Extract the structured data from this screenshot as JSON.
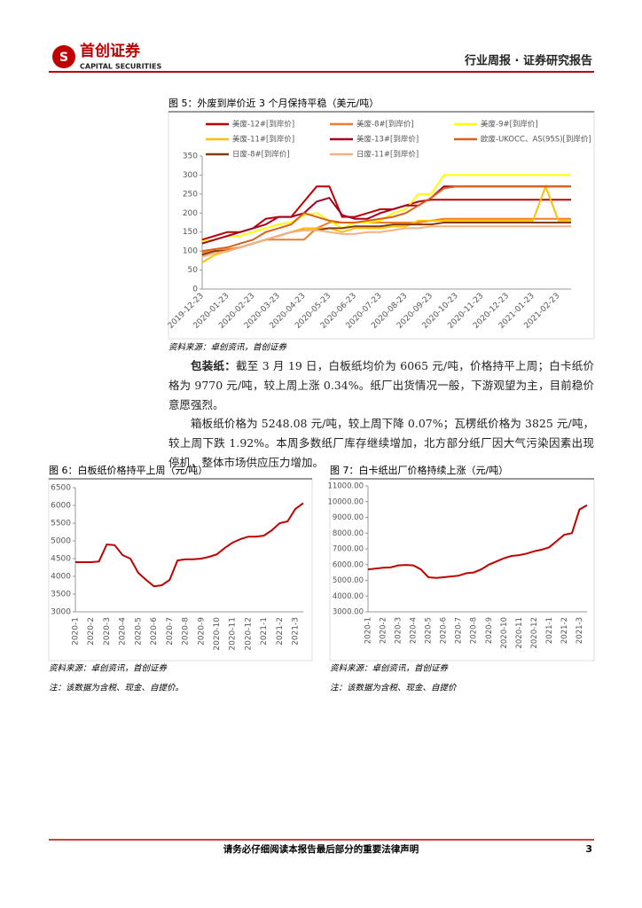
{
  "header": {
    "logo_cn": "首创证券",
    "logo_en": "CAPITAL SECURITIES",
    "report_type": "行业周报 · 证券研究报告"
  },
  "chart_data": [
    {
      "type": "line",
      "title": "图 5：外废到岸价近 3 个月保持平稳（美元/吨）",
      "legend": "top",
      "categories": [
        "2019-12-23",
        null,
        "2020-01-23",
        null,
        "2020-02-23",
        null,
        "2020-03-23",
        null,
        "2020-04-23",
        null,
        "2020-05-23",
        null,
        "2020-06-23",
        null,
        "2020-07-23",
        null,
        "2020-08-23",
        null,
        "2020-09-23",
        null,
        "2020-10-23",
        null,
        "2020-11-23",
        null,
        "2020-12-23",
        null,
        "2021-01-23",
        null,
        "2021-02-23",
        null
      ],
      "ylim": [
        0,
        350
      ],
      "yticks": [
        0,
        50,
        100,
        150,
        200,
        250,
        300,
        350
      ],
      "series": [
        {
          "name": "美废-12#[到岸价]",
          "color": "#c00000",
          "values": [
            130,
            140,
            150,
            150,
            160,
            185,
            190,
            190,
            230,
            270,
            270,
            190,
            190,
            200,
            210,
            210,
            220,
            230,
            235,
            235,
            235,
            235,
            235,
            235,
            235,
            235,
            235,
            235,
            235,
            235
          ]
        },
        {
          "name": "美废-8#[到岸价]",
          "color": "#ed7d31",
          "values": [
            95,
            100,
            105,
            110,
            120,
            130,
            130,
            130,
            130,
            160,
            175,
            175,
            175,
            175,
            175,
            175,
            175,
            175,
            180,
            185,
            185,
            185,
            185,
            185,
            185,
            185,
            185,
            185,
            185,
            185
          ]
        },
        {
          "name": "美废-9#[到岸价]",
          "color": "#ffff00",
          "values": [
            125,
            130,
            140,
            140,
            150,
            160,
            170,
            175,
            195,
            200,
            180,
            160,
            175,
            175,
            180,
            200,
            210,
            250,
            250,
            300,
            300,
            300,
            300,
            300,
            300,
            300,
            300,
            300,
            300,
            300
          ]
        },
        {
          "name": "美废-11#[到岸价]",
          "color": "#ffc000",
          "values": [
            70,
            90,
            100,
            110,
            120,
            130,
            140,
            150,
            160,
            160,
            160,
            150,
            160,
            160,
            160,
            165,
            165,
            180,
            180,
            180,
            180,
            180,
            180,
            180,
            180,
            180,
            180,
            270,
            180,
            180
          ]
        },
        {
          "name": "美废-13#[到岸价]",
          "color": "#a50021",
          "values": [
            120,
            130,
            140,
            150,
            160,
            170,
            190,
            190,
            200,
            230,
            240,
            195,
            185,
            185,
            200,
            210,
            220,
            220,
            240,
            270,
            270,
            270,
            270,
            270,
            270,
            270,
            270,
            270,
            270,
            270
          ]
        },
        {
          "name": "欧废-UKOCC、AS(95S)[到岸价]",
          "color": "#d9601a",
          "values": [
            100,
            105,
            110,
            120,
            130,
            150,
            160,
            170,
            200,
            190,
            180,
            175,
            175,
            180,
            185,
            190,
            200,
            220,
            240,
            265,
            270,
            270,
            270,
            270,
            270,
            270,
            270,
            270,
            270,
            270
          ]
        },
        {
          "name": "日废-8#[到岸价]",
          "color": "#843c0c",
          "values": [
            90,
            100,
            100,
            110,
            120,
            130,
            140,
            150,
            155,
            155,
            160,
            160,
            165,
            165,
            165,
            170,
            170,
            170,
            170,
            175,
            175,
            175,
            175,
            175,
            175,
            175,
            175,
            175,
            175,
            175
          ]
        },
        {
          "name": "日废-11#[到岸价]",
          "color": "#f4b183",
          "values": [
            85,
            95,
            100,
            110,
            120,
            130,
            140,
            150,
            155,
            155,
            150,
            145,
            145,
            150,
            150,
            155,
            160,
            160,
            165,
            165,
            165,
            165,
            165,
            165,
            165,
            165,
            165,
            165,
            165,
            165
          ]
        }
      ]
    },
    {
      "type": "line",
      "title": "图 6：白板纸价格持平上周（元/吨）",
      "color": "#c00000",
      "categories": [
        "2020-1",
        null,
        "2020-2",
        null,
        "2020-3",
        null,
        "2020-4",
        null,
        "2020-5",
        null,
        "2020-6",
        null,
        "2020-7",
        null,
        "2020-8",
        null,
        "2020-9",
        null,
        "2020-10",
        null,
        "2020-11",
        null,
        "2020-12",
        null,
        "2021-1",
        null,
        "2021-2",
        null,
        "2021-3",
        null
      ],
      "ylim": [
        3000,
        6500
      ],
      "yticks": [
        3000,
        3500,
        4000,
        4500,
        5000,
        5500,
        6000,
        6500
      ],
      "values": [
        4400,
        4400,
        4400,
        4420,
        4900,
        4880,
        4600,
        4500,
        4100,
        3900,
        3720,
        3750,
        3900,
        4450,
        4480,
        4480,
        4500,
        4550,
        4620,
        4800,
        4950,
        5050,
        5120,
        5120,
        5150,
        5300,
        5500,
        5550,
        5900,
        6065
      ]
    },
    {
      "type": "line",
      "title": "图 7：白卡纸出厂价格持续上涨（元/吨）",
      "color": "#c00000",
      "categories": [
        "2020-1",
        null,
        "2020-2",
        null,
        "2020-3",
        null,
        "2020-4",
        null,
        "2020-5",
        null,
        "2020-6",
        null,
        "2020-7",
        null,
        "2020-8",
        null,
        "2020-9",
        null,
        "2020-10",
        null,
        "2020-11",
        null,
        "2020-12",
        null,
        "2021-1",
        null,
        "2021-2",
        null,
        "2021-3",
        null
      ],
      "ylim": [
        3000,
        11000
      ],
      "yticks": [
        {
          "value": 3000,
          "label": "3000.00"
        },
        {
          "value": 4000,
          "label": "4000.00"
        },
        {
          "value": 5000,
          "label": "5000.00"
        },
        {
          "value": 6000,
          "label": "6000.00"
        },
        {
          "value": 7000,
          "label": "7000.00"
        },
        {
          "value": 8000,
          "label": "8000.00"
        },
        {
          "value": 9000,
          "label": "9000.00"
        },
        {
          "value": 10000,
          "label": "10000.00"
        },
        {
          "value": 11000,
          "label": "11000.00"
        }
      ],
      "values": [
        5700,
        5750,
        5800,
        5820,
        5950,
        5980,
        5950,
        5700,
        5200,
        5150,
        5200,
        5250,
        5300,
        5450,
        5500,
        5700,
        6000,
        6200,
        6400,
        6550,
        6600,
        6700,
        6850,
        6950,
        7100,
        7500,
        7900,
        8000,
        9500,
        9770
      ]
    }
  ],
  "figures": [
    {
      "source": "资料来源：卓创资讯，首创证券"
    },
    {
      "source": "资料来源：卓创资讯，首创证券",
      "note": "注：该数据为含税、现金、自提价。"
    },
    {
      "source": "资料来源：卓创资讯，首创证券",
      "note": "注：该数据为含税、现金、自提价"
    }
  ],
  "body": {
    "paragraph_1_lead": "包装纸：",
    "paragraph_1": "截至 3 月 19 日，白板纸均价为 6065 元/吨，价格持平上周；白卡纸价格为 9770 元/吨，较上周上涨 0.34%。纸厂出货情况一般，下游观望为主，目前稳价意愿强烈。",
    "paragraph_2": "箱板纸价格为 5248.08 元/吨，较上周下降 0.07%；瓦楞纸价格为 3825 元/吨，较上周下跌 1.92%。本周多数纸厂库存继续增加，北方部分纸厂因大气污染因素出现停机，整体市场供应压力增加。"
  },
  "footer": {
    "disclaimer": "请务必仔细阅读本报告最后部分的重要法律声明",
    "page_number": 3
  }
}
